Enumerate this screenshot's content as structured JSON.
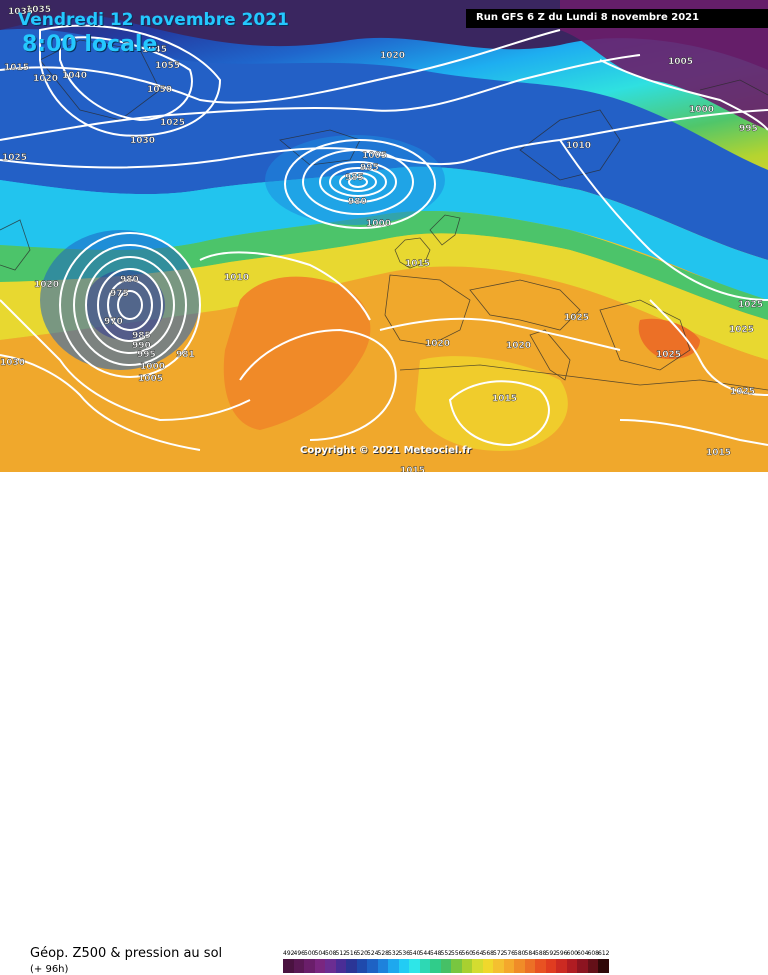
{
  "header": {
    "title": "Vendredi 12 novembre 2021",
    "subtitle": "8:00 locale",
    "run_info": "Run GFS 6 Z du Lundi 8 novembre 2021"
  },
  "map": {
    "copyright": "Copyright © 2021 Meteociel.fr",
    "pressure_labels": [
      "1015",
      "1020",
      "1035",
      "1045",
      "1040",
      "1055",
      "1050",
      "1030",
      "1025",
      "1020",
      "1005",
      "995",
      "985",
      "980",
      "1000",
      "1010",
      "1010",
      "1005",
      "1000",
      "995",
      "1015",
      "1020",
      "1025",
      "1025",
      "1025",
      "1020",
      "1025",
      "1015",
      "1025",
      "1015",
      "1015",
      "980",
      "975",
      "970",
      "985",
      "990",
      "995",
      "1000",
      "1005",
      "981",
      "1030",
      "1025",
      "1020",
      "1035"
    ]
  },
  "legend": {
    "title": "Géop. Z500 & pression au sol",
    "forecast_hour": "(+ 96h)",
    "scale_values": [
      "492",
      "496",
      "500",
      "504",
      "508",
      "512",
      "516",
      "520",
      "524",
      "528",
      "532",
      "536",
      "540",
      "544",
      "548",
      "552",
      "556",
      "560",
      "564",
      "568",
      "572",
      "576",
      "580",
      "584",
      "588",
      "592",
      "596",
      "600",
      "604",
      "608",
      "612"
    ],
    "scale_colors": [
      "#4a1240",
      "#5a1854",
      "#6a1e6a",
      "#7a2680",
      "#6b2d92",
      "#4a2d96",
      "#2b3596",
      "#1f4aac",
      "#1e62c4",
      "#1e82dc",
      "#1ea8ee",
      "#22ccf4",
      "#2ee6e8",
      "#2ed8b4",
      "#30cc8a",
      "#46c066",
      "#78c640",
      "#a8d030",
      "#d4dc30",
      "#f0d82c",
      "#f4c030",
      "#f4a82c",
      "#f08c28",
      "#ec7026",
      "#e85222",
      "#e03c20",
      "#cc2a22",
      "#b01c22",
      "#8c1420",
      "#641018",
      "#300808"
    ]
  }
}
